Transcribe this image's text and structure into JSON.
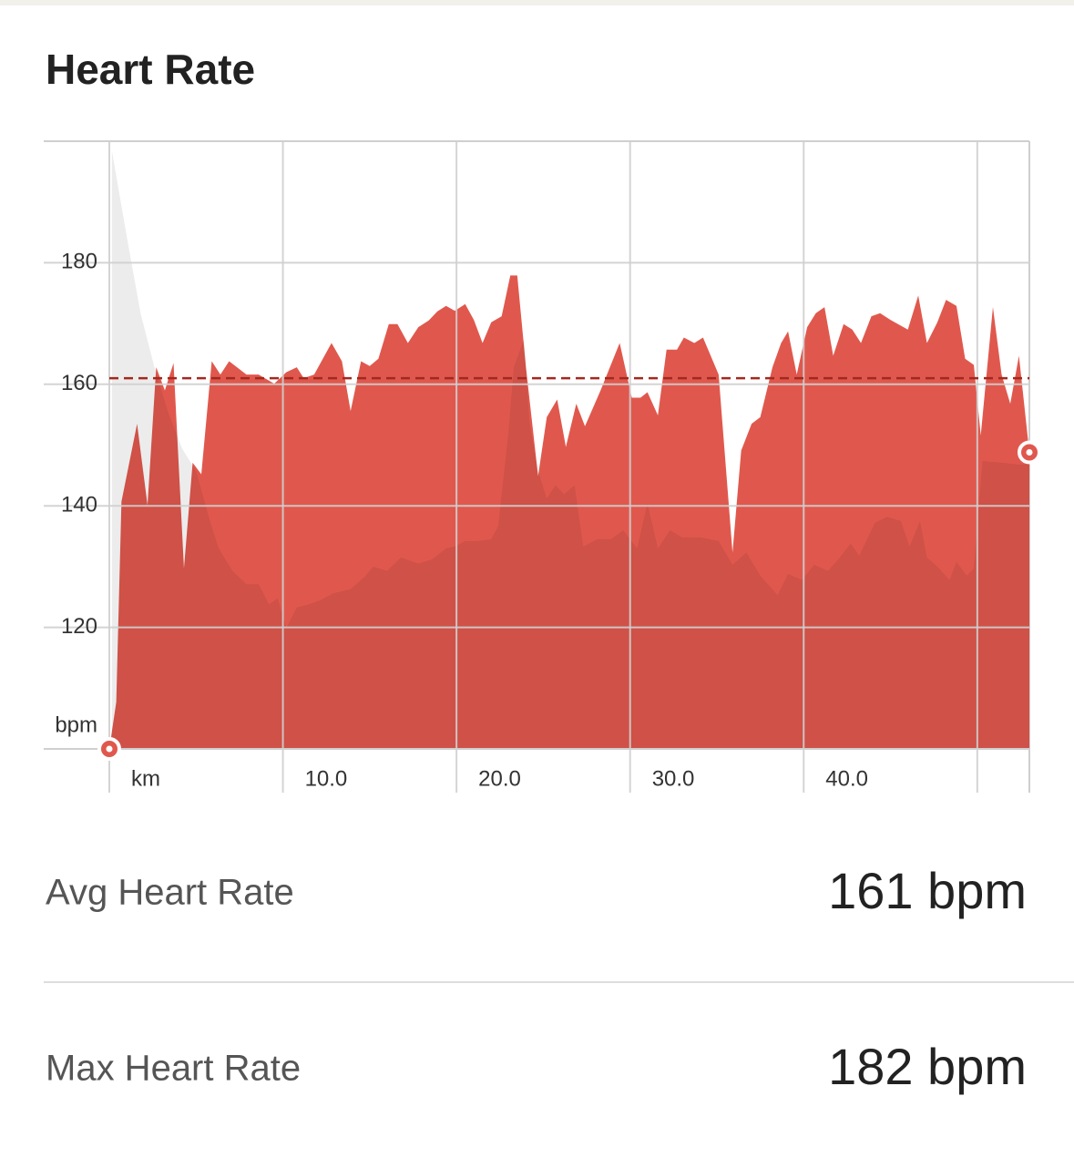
{
  "title": "Heart Rate",
  "chart_data": {
    "type": "area",
    "xlim": [
      0,
      53
    ],
    "ylim": [
      100,
      200
    ],
    "xticks": [
      {
        "value": 0,
        "label": "km"
      },
      {
        "value": 10,
        "label": "10.0"
      },
      {
        "value": 20,
        "label": "20.0"
      },
      {
        "value": 30,
        "label": "30.0"
      },
      {
        "value": 40,
        "label": "40.0"
      },
      {
        "value": 50,
        "label": null
      }
    ],
    "yticks": [
      120,
      140,
      160,
      180
    ],
    "ylabel": "bpm",
    "grid": true,
    "average": 161,
    "average_color": "#a3281f",
    "series": [
      {
        "color": "#e0584d",
        "x": [
          0,
          0.4,
          0.7,
          1.6,
          2.2,
          2.7,
          3.2,
          3.7,
          4.3,
          4.8,
          5.3,
          5.9,
          6.4,
          6.9,
          7.9,
          8.6,
          9.5,
          10.2,
          10.8,
          11.2,
          11.8,
          12.8,
          13.4,
          13.9,
          14.5,
          15.0,
          15.5,
          16.1,
          16.6,
          17.2,
          17.8,
          18.4,
          18.9,
          19.4,
          19.9,
          20.5,
          21.0,
          21.5,
          22.0,
          22.6,
          23.1,
          23.5,
          24.0,
          24.7,
          25.2,
          25.8,
          26.3,
          26.9,
          27.4,
          28.3,
          29.4,
          30.1,
          30.6,
          31.0,
          31.6,
          32.1,
          32.7,
          33.1,
          33.7,
          34.2,
          35.1,
          35.9,
          36.4,
          37.0,
          37.5,
          38.2,
          38.7,
          39.1,
          39.6,
          40.2,
          40.7,
          41.2,
          41.7,
          42.3,
          42.8,
          43.3,
          43.9,
          44.4,
          45.0,
          46.0,
          46.6,
          47.1,
          47.7,
          48.2,
          48.8,
          49.3,
          49.8,
          50.2,
          50.9,
          51.4,
          51.9,
          52.4,
          53
        ],
        "values": [
          100,
          107.7,
          140.7,
          153.5,
          140.1,
          162.8,
          159,
          163.5,
          129.7,
          147.1,
          145.2,
          163.8,
          161.6,
          163.8,
          161.6,
          161.6,
          160.1,
          162,
          162.8,
          161,
          161.6,
          166.8,
          163.8,
          155.6,
          163.8,
          163,
          164.2,
          169.9,
          169.9,
          166.8,
          169.4,
          170.5,
          172,
          172.9,
          172.1,
          173.2,
          170.6,
          166.8,
          170.2,
          171.2,
          177.9,
          177.9,
          162.8,
          144.9,
          154.6,
          157.5,
          149.7,
          156.8,
          153.1,
          159,
          166.8,
          157.8,
          157.8,
          158.7,
          154.9,
          165.7,
          165.7,
          167.7,
          166.8,
          167.7,
          161.6,
          132.3,
          149.1,
          153.5,
          154.6,
          162.8,
          166.8,
          168.7,
          161.6,
          169.4,
          171.7,
          172.7,
          164.7,
          169.9,
          169,
          166.8,
          171.2,
          171.7,
          170.6,
          169,
          174.6,
          166.8,
          170.2,
          173.9,
          172.9,
          164.2,
          163.2,
          151.6,
          172.7,
          161.6,
          156.8,
          164.7,
          148.8
        ]
      },
      {
        "color": "rgba(0,0,0,0.075)",
        "x": [
          0.15,
          1.05,
          1.8,
          2.6,
          3.4,
          4.2,
          5.0,
          5.8,
          6.3,
          7.1,
          7.9,
          8.6,
          9.2,
          9.7,
          10.2,
          10.8,
          11.5,
          12.1,
          12.9,
          13.9,
          14.7,
          15.2,
          16.0,
          16.8,
          17.8,
          18.6,
          19.4,
          19.9,
          20.5,
          21.2,
          22.0,
          22.4,
          23.0,
          23.3,
          23.9,
          24.2,
          24.7,
          25.2,
          25.7,
          26.2,
          26.8,
          27.3,
          28.1,
          28.9,
          29.6,
          30.4,
          31.0,
          31.6,
          32.3,
          33.0,
          34.1,
          35.1,
          35.9,
          36.7,
          37.5,
          38.5,
          39.1,
          39.9,
          40.6,
          41.4,
          42.0,
          42.7,
          43.2,
          44.1,
          44.8,
          45.6,
          46.1,
          46.7,
          47.1,
          47.7,
          48.4,
          48.8,
          49.4,
          49.8,
          50.3,
          51.4,
          52.4,
          53
        ],
        "values": [
          198.4,
          183.6,
          171.7,
          162.8,
          155.3,
          149.4,
          145.7,
          137.5,
          133,
          129.3,
          127.1,
          127.1,
          123.8,
          124.8,
          119.9,
          123.3,
          123.8,
          124.4,
          125.6,
          126.3,
          128.3,
          130,
          129.3,
          131.5,
          130.5,
          131.2,
          133,
          133.3,
          134.2,
          134.2,
          134.5,
          136.7,
          152.3,
          162.8,
          167.5,
          153.8,
          145.7,
          141.2,
          143.4,
          141.9,
          143.4,
          133.3,
          134.5,
          134.5,
          136,
          133,
          140.4,
          133,
          136,
          134.8,
          134.8,
          134.2,
          130.3,
          132.3,
          128.5,
          125.3,
          128.8,
          127.8,
          130.3,
          129.3,
          131.2,
          133.8,
          131.8,
          137.2,
          138.2,
          137.5,
          133.3,
          137.5,
          131.5,
          130,
          127.8,
          130.8,
          128.5,
          129.7,
          147.4,
          147.1,
          146.8,
          146.8
        ]
      }
    ]
  },
  "stats": [
    {
      "label": "Avg Heart Rate",
      "value": "161 bpm"
    },
    {
      "label": "Max Heart Rate",
      "value": "182 bpm"
    }
  ]
}
